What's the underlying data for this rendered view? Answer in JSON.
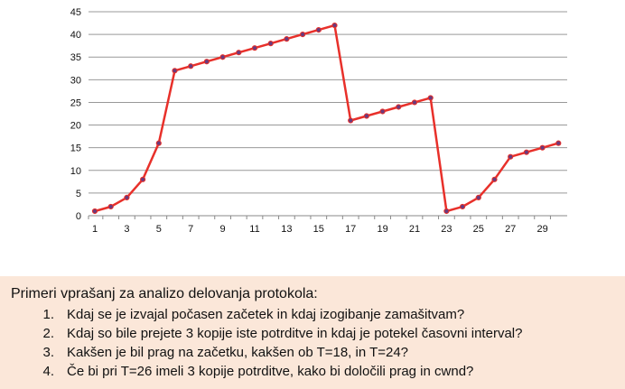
{
  "chart_data": {
    "type": "line",
    "x": [
      1,
      2,
      3,
      4,
      5,
      6,
      7,
      8,
      9,
      10,
      11,
      12,
      13,
      14,
      15,
      16,
      17,
      18,
      19,
      20,
      21,
      22,
      23,
      24,
      25,
      26,
      27,
      28,
      29,
      30
    ],
    "series": [
      {
        "values": [
          1,
          2,
          4,
          8,
          16,
          32,
          33,
          34,
          35,
          36,
          37,
          38,
          39,
          40,
          41,
          42,
          21,
          22,
          23,
          24,
          25,
          26,
          1,
          2,
          4,
          8,
          13,
          14,
          15,
          16
        ]
      }
    ],
    "x_tick_labels": [
      "1",
      "3",
      "5",
      "7",
      "9",
      "11",
      "13",
      "15",
      "17",
      "19",
      "21",
      "23",
      "25",
      "27",
      "29"
    ],
    "y_ticks": [
      0,
      5,
      10,
      15,
      20,
      25,
      30,
      35,
      40,
      45
    ],
    "ylim": [
      0,
      45
    ],
    "xlim": [
      1,
      30
    ],
    "grid": "horizontal",
    "title": "",
    "xlabel": "",
    "ylabel": "",
    "colors": {
      "line": "#e8302a",
      "marker": "#6b3a7d",
      "grid": "#999999"
    }
  },
  "questions": {
    "title": "Primeri vprašanj za analizo delovanja protokola:",
    "items": [
      {
        "num": "1.",
        "text": "Kdaj se je izvajal počasen začetek in kdaj izogibanje zamašitvam?"
      },
      {
        "num": "2.",
        "text": "Kdaj so bile prejete 3 kopije iste potrditve in kdaj je potekel časovni interval?"
      },
      {
        "num": "3.",
        "text": "Kakšen je bil prag na začetku, kakšen ob T=18, in T=24?"
      },
      {
        "num": "4.",
        "text": "Če bi pri T=26 imeli 3 kopije potrditve, kako bi določili prag in cwnd?"
      }
    ]
  }
}
